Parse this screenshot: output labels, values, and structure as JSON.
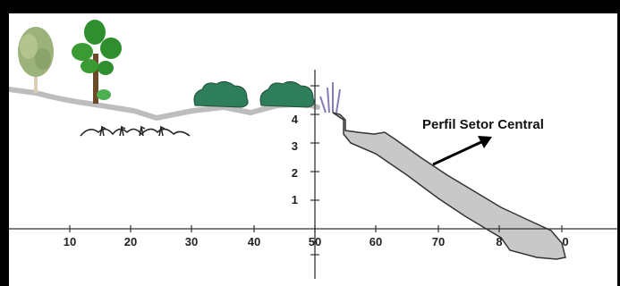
{
  "diagram": {
    "annotation": "Perfil Setor Central",
    "x_ticks": [
      "10",
      "20",
      "30",
      "40",
      "50",
      "60",
      "70",
      "8",
      "0"
    ],
    "y_ticks": [
      "4",
      "3",
      "2",
      "1"
    ],
    "colors": {
      "frame": "#000000",
      "background": "#ffffff",
      "ground_line": "#bdbdbd",
      "profile_fill": "#c8c8c8",
      "profile_stroke": "#333333",
      "axis": "#333333",
      "shrub": "#2e7d5b",
      "tree_canopy": "#2f8f2f",
      "birch_canopy": "#9bb27a"
    },
    "icons": [
      "birch-tree-icon",
      "leafy-tree-icon",
      "shrub-icon",
      "grass-icon",
      "reed-icon",
      "arrow-icon"
    ]
  }
}
